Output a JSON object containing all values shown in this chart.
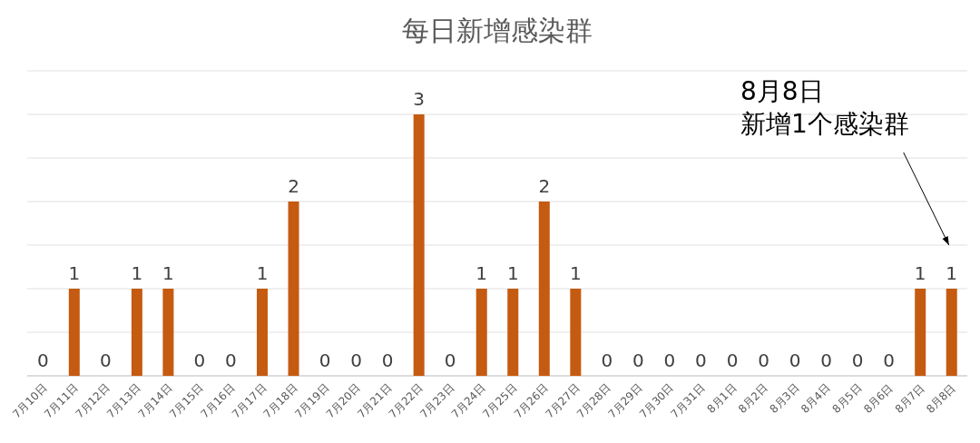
{
  "chart_data": {
    "type": "bar",
    "title": "每日新增感染群",
    "categories": [
      "7月10日",
      "7月11日",
      "7月12日",
      "7月13日",
      "7月14日",
      "7月15日",
      "7月16日",
      "7月17日",
      "7月18日",
      "7月19日",
      "7月20日",
      "7月21日",
      "7月22日",
      "7月23日",
      "7月24日",
      "7月25日",
      "7月26日",
      "7月27日",
      "7月28日",
      "7月29日",
      "7月30日",
      "7月31日",
      "8月1日",
      "8月2日",
      "8月3日",
      "8月4日",
      "8月5日",
      "8月6日",
      "8月7日",
      "8月8日"
    ],
    "values": [
      0,
      1,
      0,
      1,
      1,
      0,
      0,
      1,
      2,
      0,
      0,
      0,
      3,
      0,
      1,
      1,
      2,
      1,
      0,
      0,
      0,
      0,
      0,
      0,
      0,
      0,
      0,
      0,
      1,
      1
    ],
    "color": "#c55a11",
    "ylim": [
      0,
      3.5
    ],
    "yticks": [
      {
        "value": 0,
        "label": null
      },
      {
        "value": 0.5,
        "label": null
      },
      {
        "value": 1,
        "label": null
      },
      {
        "value": 1.5,
        "label": null
      },
      {
        "value": 2,
        "label": null
      },
      {
        "value": 2.5,
        "label": null
      },
      {
        "value": 3,
        "label": null
      },
      {
        "value": 3.5,
        "label": null
      }
    ],
    "tick_labels": "x",
    "grid": "y",
    "data_labels": true,
    "annotations": [
      "8月8日",
      "新增1个感染群"
    ]
  }
}
